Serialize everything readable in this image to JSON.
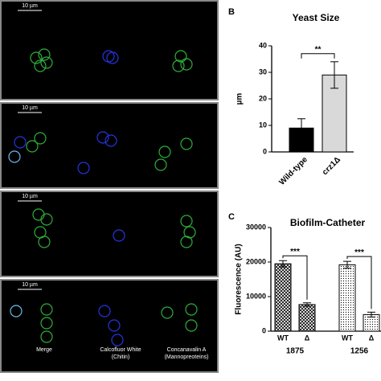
{
  "micrographs": {
    "scale_bar_labels": [
      "10 µm",
      "10 µm",
      "10 µm",
      "10 µm"
    ],
    "channel_labels": [
      [
        "Merge"
      ],
      [
        "Calcofluor White",
        "(Chitin)"
      ],
      [
        "Concanavalin A",
        "(Mannopreoteins)"
      ]
    ]
  },
  "chart_data": [
    {
      "type": "bar",
      "panel_label": "B",
      "title": "Yeast Size",
      "y_label": "µm",
      "categories": [
        "Wild-type",
        "crz1Δ"
      ],
      "values": [
        9,
        29
      ],
      "errors": [
        3.5,
        5
      ],
      "colors": [
        "#000000",
        "#d9d9d9"
      ],
      "ylim": [
        0,
        40
      ],
      "yticks": [
        0,
        10,
        20,
        30,
        40
      ],
      "significance": [
        "**"
      ]
    },
    {
      "type": "bar",
      "panel_label": "C",
      "title": "Biofilm-Catheter",
      "y_label": "Fluorescence (AU)",
      "categories": [
        "WT",
        "Δ",
        "WT",
        "Δ"
      ],
      "group_labels": [
        "1875",
        "1256"
      ],
      "values": [
        19500,
        7700,
        19200,
        4800
      ],
      "errors": [
        900,
        500,
        1000,
        700
      ],
      "patterns": [
        "crosshatch",
        "crosshatch",
        "dots",
        "dots"
      ],
      "ylim": [
        0,
        30000
      ],
      "yticks": [
        0,
        10000,
        20000,
        30000
      ],
      "significance": [
        "***",
        "***"
      ]
    }
  ]
}
